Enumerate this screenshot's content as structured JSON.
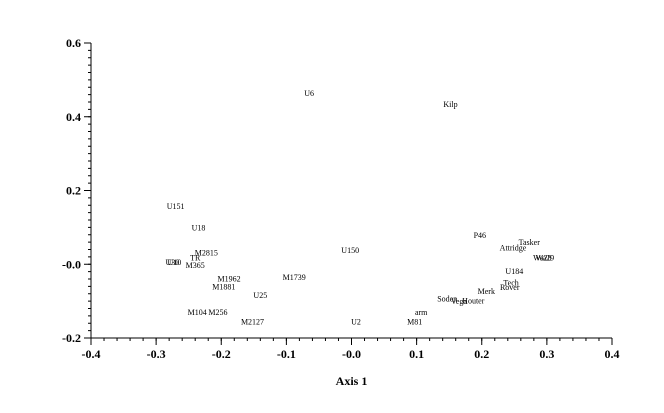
{
  "chart_data": {
    "type": "scatter",
    "title": "",
    "xlabel": "Axis 1",
    "ylabel": "",
    "xlim": [
      -0.4,
      0.4
    ],
    "ylim": [
      -0.2,
      0.6
    ],
    "xticks": [
      -0.4,
      -0.3,
      -0.2,
      -0.1,
      0.0,
      0.1,
      0.2,
      0.3,
      0.4
    ],
    "xtick_labels": [
      "-0.4",
      "-0.3",
      "-0.2",
      "-0.1",
      "-0.0",
      "0.1",
      "0.2",
      "0.3",
      "0.4"
    ],
    "yticks": [
      -0.2,
      0.0,
      0.2,
      0.4,
      0.6
    ],
    "ytick_labels": [
      "-0.2",
      "-0.0",
      "0.2",
      "0.4",
      "0.6"
    ],
    "grid": false,
    "points": [
      {
        "label": "U6",
        "x": -0.065,
        "y": 0.465
      },
      {
        "label": "Kilp",
        "x": 0.152,
        "y": 0.435
      },
      {
        "label": "U151",
        "x": -0.27,
        "y": 0.158
      },
      {
        "label": "U18",
        "x": -0.235,
        "y": 0.1
      },
      {
        "label": "M2815",
        "x": -0.223,
        "y": 0.032
      },
      {
        "label": "TR",
        "x": -0.24,
        "y": 0.018
      },
      {
        "label": "U30",
        "x": -0.275,
        "y": 0.006
      },
      {
        "label": "U10",
        "x": -0.272,
        "y": 0.006
      },
      {
        "label": "M365",
        "x": -0.24,
        "y": -0.002
      },
      {
        "label": "M1962",
        "x": -0.188,
        "y": -0.038
      },
      {
        "label": "M1881",
        "x": -0.196,
        "y": -0.06
      },
      {
        "label": "M1739",
        "x": -0.088,
        "y": -0.035
      },
      {
        "label": "U150",
        "x": -0.002,
        "y": 0.038
      },
      {
        "label": "U25",
        "x": -0.14,
        "y": -0.083
      },
      {
        "label": "M104",
        "x": -0.237,
        "y": -0.13
      },
      {
        "label": "M256",
        "x": -0.205,
        "y": -0.13
      },
      {
        "label": "M2127",
        "x": -0.152,
        "y": -0.155
      },
      {
        "label": "U2",
        "x": 0.007,
        "y": -0.155
      },
      {
        "label": "arm",
        "x": 0.107,
        "y": -0.13
      },
      {
        "label": "M81",
        "x": 0.097,
        "y": -0.155
      },
      {
        "label": "P46",
        "x": 0.197,
        "y": 0.08
      },
      {
        "label": "Tasker",
        "x": 0.273,
        "y": 0.06
      },
      {
        "label": "Attridge",
        "x": 0.248,
        "y": 0.045
      },
      {
        "label": "Wa28",
        "x": 0.293,
        "y": 0.018
      },
      {
        "label": "Wa29",
        "x": 0.297,
        "y": 0.018
      },
      {
        "label": "U184",
        "x": 0.25,
        "y": -0.018
      },
      {
        "label": "Tech",
        "x": 0.245,
        "y": -0.05
      },
      {
        "label": "Rover",
        "x": 0.243,
        "y": -0.062
      },
      {
        "label": "Merk",
        "x": 0.207,
        "y": -0.072
      },
      {
        "label": "Soden",
        "x": 0.147,
        "y": -0.093
      },
      {
        "label": "Vega",
        "x": 0.165,
        "y": -0.1
      },
      {
        "label": "Houter",
        "x": 0.187,
        "y": -0.098
      }
    ]
  }
}
